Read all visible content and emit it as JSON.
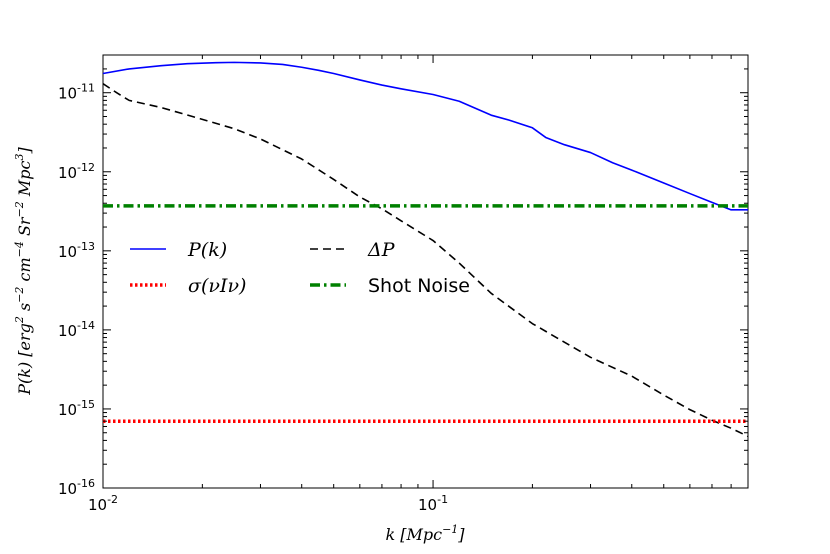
{
  "chart_data": {
    "type": "line",
    "title": "",
    "xlabel": "k [Mpc⁻¹]",
    "ylabel": "P(k) [erg² s⁻² cm⁻⁴ Sr⁻² Mpc³]",
    "xscale": "log",
    "yscale": "log",
    "xlim": [
      0.01,
      0.9
    ],
    "ylim": [
      1e-16,
      3e-11
    ],
    "x_ticks": [
      {
        "value": 0.01,
        "base": "10",
        "exp": "-2"
      },
      {
        "value": 0.1,
        "base": "10",
        "exp": "-1"
      }
    ],
    "y_ticks": [
      {
        "value": 1e-16,
        "base": "10",
        "exp": "-16"
      },
      {
        "value": 1e-15,
        "base": "10",
        "exp": "-15"
      },
      {
        "value": 1e-14,
        "base": "10",
        "exp": "-14"
      },
      {
        "value": 1e-13,
        "base": "10",
        "exp": "-13"
      },
      {
        "value": 1e-12,
        "base": "10",
        "exp": "-12"
      },
      {
        "value": 1e-11,
        "base": "10",
        "exp": "-11"
      }
    ],
    "legend_position": "center-left",
    "series": [
      {
        "name": "P(k)",
        "color": "#0000ff",
        "style": "solid",
        "x": [
          0.01,
          0.012,
          0.015,
          0.018,
          0.022,
          0.025,
          0.03,
          0.035,
          0.04,
          0.045,
          0.05,
          0.06,
          0.07,
          0.08,
          0.1,
          0.12,
          0.15,
          0.17,
          0.2,
          0.22,
          0.25,
          0.3,
          0.35,
          0.4,
          0.5,
          0.6,
          0.7,
          0.8,
          0.9
        ],
        "y": [
          1.75e-11,
          2e-11,
          2.2e-11,
          2.33e-11,
          2.4e-11,
          2.42e-11,
          2.38e-11,
          2.28e-11,
          2.1e-11,
          1.92e-11,
          1.75e-11,
          1.45e-11,
          1.25e-11,
          1.12e-11,
          9.5e-12,
          7.8e-12,
          5.2e-12,
          4.5e-12,
          3.6e-12,
          2.7e-12,
          2.2e-12,
          1.75e-12,
          1.3e-12,
          1.05e-12,
          7.2e-13,
          5.3e-13,
          4.1e-13,
          3.3e-13,
          3.3e-13
        ]
      },
      {
        "name": "ΔP",
        "color": "#000000",
        "style": "dashed",
        "x": [
          0.01,
          0.011,
          0.012,
          0.015,
          0.02,
          0.025,
          0.03,
          0.04,
          0.05,
          0.06,
          0.07,
          0.08,
          0.1,
          0.12,
          0.15,
          0.2,
          0.3,
          0.4,
          0.5,
          0.6,
          0.7,
          0.8,
          0.9
        ],
        "y": [
          1.3e-11,
          1e-11,
          8e-12,
          6.5e-12,
          4.6e-12,
          3.5e-12,
          2.6e-12,
          1.45e-12,
          8e-13,
          4.8e-13,
          3.4e-13,
          2.4e-13,
          1.35e-13,
          7e-14,
          2.9e-14,
          1.2e-14,
          4.5e-15,
          2.6e-15,
          1.5e-15,
          9.8e-16,
          7.2e-16,
          5.7e-16,
          4.5e-16
        ]
      },
      {
        "name": "σ(νIν)",
        "color": "#ff0000",
        "style": "dotted",
        "x": [
          0.01,
          0.9
        ],
        "y": [
          7e-16,
          7e-16
        ]
      },
      {
        "name": "Shot Noise",
        "color": "#008000",
        "style": "dashdot",
        "x": [
          0.01,
          0.9
        ],
        "y": [
          3.7e-13,
          3.7e-13
        ]
      }
    ]
  }
}
